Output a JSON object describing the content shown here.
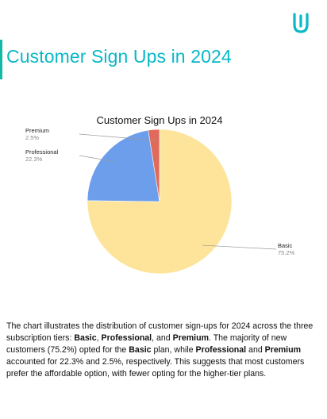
{
  "page": {
    "title": "Customer Sign Ups in 2024"
  },
  "brand": {
    "accent": "#08b8c8",
    "icon": "udacity-u-icon"
  },
  "chart_data": {
    "type": "pie",
    "title": "Customer Sign Ups in 2024",
    "slices": [
      {
        "label": "Basic",
        "value": 75.2,
        "display": "75.2%",
        "color": "#fde49a"
      },
      {
        "label": "Professional",
        "value": 22.3,
        "display": "22.3%",
        "color": "#6d9eeb"
      },
      {
        "label": "Premium",
        "value": 2.5,
        "display": "2.5%",
        "color": "#e06b5c"
      }
    ],
    "start": "12 o'clock",
    "direction": "clockwise",
    "legend": "leader-line labels outside"
  },
  "caption": {
    "p1": "The chart illustrates the distribution of customer sign-ups for 2024 across the three subscription tiers: ",
    "t1": "Basic",
    "p2": ", ",
    "t2": "Professional",
    "p3": ", and ",
    "t3": "Premium",
    "p4": ". The majority of new customers (75.2%) opted for the ",
    "t4": "Basic",
    "p5": " plan, while ",
    "t5": "Professional",
    "p6": " and ",
    "t6": "Premium",
    "p7": " accounted for 22.3% and 2.5%, respectively. This suggests that most customers prefer the affordable option, with fewer opting for the higher-tier plans."
  }
}
